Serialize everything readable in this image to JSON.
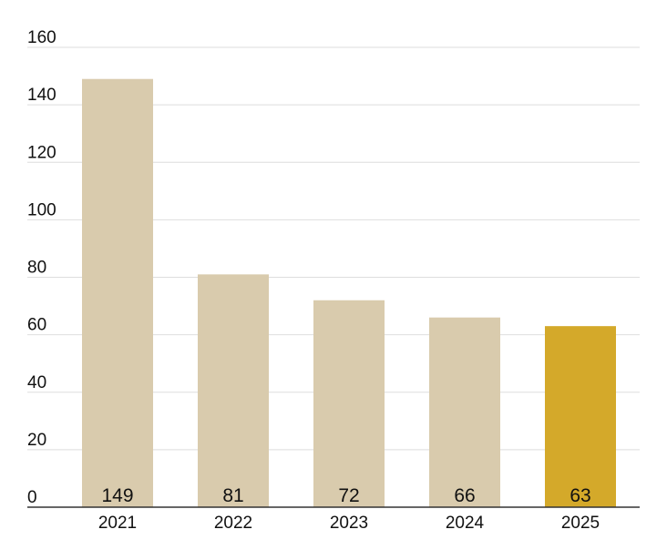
{
  "chart_data": {
    "type": "bar",
    "title": "",
    "xlabel": "",
    "ylabel": "",
    "categories": [
      "2021",
      "2022",
      "2023",
      "2024",
      "2025"
    ],
    "values": [
      149,
      81,
      72,
      66,
      63
    ],
    "data_labels": [
      "149",
      "81",
      "72",
      "66",
      "63"
    ],
    "ylim": [
      0,
      160
    ],
    "yticks": [
      0,
      20,
      40,
      60,
      80,
      100,
      120,
      140,
      160
    ],
    "grid": true,
    "legend": "none",
    "colors": {
      "default_bar": "#d9cbad",
      "highlight_bar": "#d4a92a",
      "gridline": "#dedede",
      "axis": "#333333",
      "text": "#111111"
    },
    "highlight_category": "2025"
  }
}
